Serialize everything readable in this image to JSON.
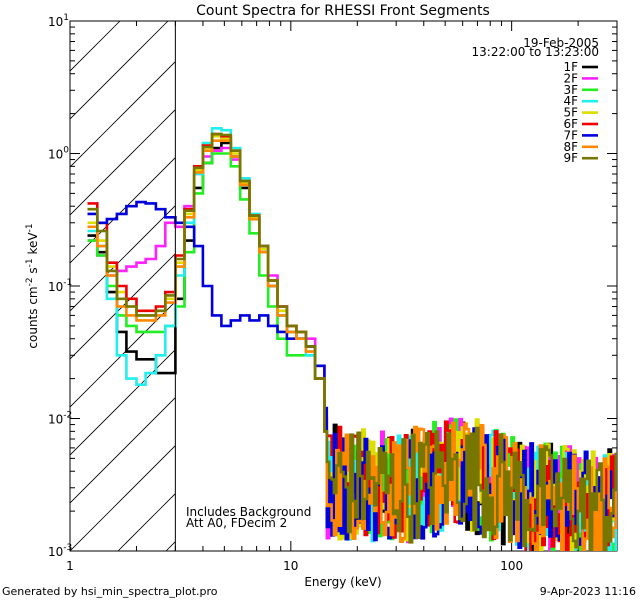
{
  "chart_data": {
    "type": "line",
    "title": "Count Spectra for RHESSI Front Segments",
    "xlabel": "Energy (keV)",
    "ylabel_main": "counts cm",
    "ylabel_exp1": "-2",
    "ylabel_mid": " s",
    "ylabel_exp2": "-1",
    "ylabel_end": " keV",
    "ylabel_exp3": "-1",
    "xscale": "log",
    "yscale": "log",
    "xlim": [
      1,
      300
    ],
    "ylim": [
      0.001,
      10
    ],
    "x_ticks": [
      {
        "value": 1,
        "label": "1"
      },
      {
        "value": 10,
        "label": "10"
      },
      {
        "value": 100,
        "label": "100"
      }
    ],
    "y_ticks": [
      {
        "value": 10,
        "base": "10",
        "exp": "1"
      },
      {
        "value": 1,
        "base": "10",
        "exp": "0"
      },
      {
        "value": 0.1,
        "base": "10",
        "exp": "-1"
      },
      {
        "value": 0.01,
        "base": "10",
        "exp": "-2"
      },
      {
        "value": 0.001,
        "base": "10",
        "exp": "-3"
      }
    ],
    "hatched_region": [
      1,
      3
    ],
    "date": "19-Feb-2005",
    "time_range": "13:22:00 to 13:23:00",
    "annotations": [
      "Includes Background",
      "Att A0, FDecim 2"
    ],
    "footer_left": "Generated by hsi_min_spectra_plot.pro",
    "footer_right": "9-Apr-2023 11:16",
    "series": [
      {
        "name": "1F",
        "color": "#000000"
      },
      {
        "name": "2F",
        "color": "#ff22ff"
      },
      {
        "name": "3F",
        "color": "#22ee22"
      },
      {
        "name": "4F",
        "color": "#22eeee"
      },
      {
        "name": "5F",
        "color": "#dddd00"
      },
      {
        "name": "6F",
        "color": "#ee0000"
      },
      {
        "name": "7F",
        "color": "#0000dd"
      },
      {
        "name": "8F",
        "color": "#ff8800"
      },
      {
        "name": "9F",
        "color": "#777700"
      }
    ],
    "profiles": {
      "common_x": [
        1.2,
        1.33,
        1.47,
        1.63,
        1.8,
        2.0,
        2.2,
        2.45,
        2.7,
        3.0,
        3.3,
        3.65,
        4.0,
        4.4,
        4.85,
        5.35,
        5.9,
        6.5,
        7.2,
        7.9,
        8.7,
        9.6,
        10.6,
        11.7,
        12.9,
        14.2
      ],
      "series_y": {
        "1F": [
          0.24,
          0.18,
          0.09,
          0.045,
          0.032,
          0.028,
          0.028,
          0.022,
          0.022,
          0.08,
          0.22,
          0.55,
          0.85,
          1.1,
          1.2,
          0.95,
          0.55,
          0.32,
          0.18,
          0.1,
          0.06,
          0.045,
          0.04,
          0.035,
          0.02,
          0.008
        ],
        "2F": [
          0.22,
          0.17,
          0.12,
          0.13,
          0.14,
          0.15,
          0.16,
          0.2,
          0.3,
          0.28,
          0.4,
          0.7,
          0.95,
          1.05,
          1.1,
          0.9,
          0.6,
          0.33,
          0.2,
          0.12,
          0.07,
          0.05,
          0.045,
          0.04,
          0.025,
          0.01
        ],
        "3F": [
          0.22,
          0.17,
          0.1,
          0.06,
          0.05,
          0.045,
          0.045,
          0.045,
          0.05,
          0.07,
          0.18,
          0.5,
          0.85,
          1.0,
          1.0,
          0.8,
          0.45,
          0.25,
          0.12,
          0.07,
          0.04,
          0.03,
          0.03,
          0.03,
          0.02,
          0.008
        ],
        "4F": [
          0.26,
          0.2,
          0.08,
          0.03,
          0.02,
          0.018,
          0.022,
          0.03,
          0.05,
          0.12,
          0.3,
          0.7,
          1.2,
          1.55,
          1.5,
          1.1,
          0.65,
          0.35,
          0.2,
          0.11,
          0.06,
          0.045,
          0.04,
          0.03,
          0.02,
          0.008
        ],
        "5F": [
          0.3,
          0.22,
          0.14,
          0.09,
          0.07,
          0.06,
          0.06,
          0.065,
          0.08,
          0.15,
          0.35,
          0.75,
          1.1,
          1.35,
          1.3,
          1.0,
          0.6,
          0.33,
          0.19,
          0.11,
          0.065,
          0.05,
          0.045,
          0.035,
          0.02,
          0.008
        ],
        "6F": [
          0.42,
          0.3,
          0.15,
          0.1,
          0.08,
          0.065,
          0.065,
          0.07,
          0.09,
          0.17,
          0.38,
          0.8,
          1.15,
          1.4,
          1.35,
          1.05,
          0.62,
          0.34,
          0.2,
          0.11,
          0.07,
          0.05,
          0.045,
          0.035,
          0.02,
          0.008
        ],
        "7F": [
          0.35,
          0.3,
          0.32,
          0.35,
          0.4,
          0.43,
          0.42,
          0.38,
          0.33,
          0.3,
          0.28,
          0.2,
          0.1,
          0.06,
          0.05,
          0.055,
          0.06,
          0.055,
          0.06,
          0.05,
          0.045,
          0.04,
          0.04,
          0.035,
          0.025,
          0.012
        ],
        "8F": [
          0.28,
          0.2,
          0.12,
          0.07,
          0.06,
          0.055,
          0.055,
          0.06,
          0.075,
          0.14,
          0.33,
          0.72,
          1.05,
          1.25,
          1.25,
          0.95,
          0.58,
          0.32,
          0.18,
          0.1,
          0.06,
          0.045,
          0.04,
          0.032,
          0.02,
          0.008
        ],
        "9F": [
          0.38,
          0.26,
          0.13,
          0.08,
          0.07,
          0.06,
          0.06,
          0.065,
          0.085,
          0.16,
          0.37,
          0.78,
          1.12,
          1.4,
          1.38,
          1.05,
          0.62,
          0.34,
          0.2,
          0.11,
          0.07,
          0.05,
          0.045,
          0.035,
          0.02,
          0.008
        ]
      },
      "tail_x_range": [
        14.2,
        290
      ],
      "tail_level": 0.0032,
      "tail_bump_center": 60,
      "tail_bump_level": 0.0045
    }
  }
}
